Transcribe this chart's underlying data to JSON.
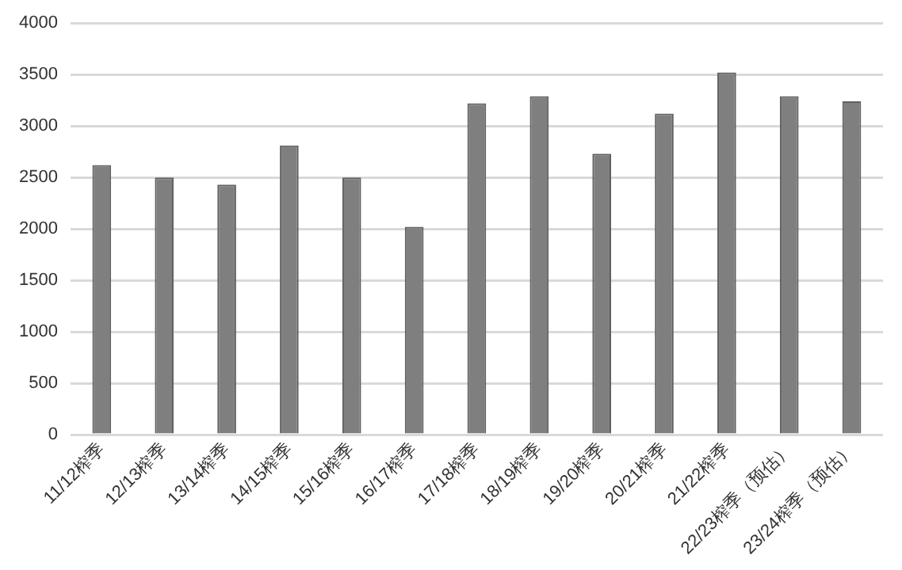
{
  "chart_data": {
    "type": "bar",
    "categories": [
      "11/12榨季",
      "12/13榨季",
      "13/14榨季",
      "14/15榨季",
      "15/16榨季",
      "16/17榨季",
      "17/18榨季",
      "18/19榨季",
      "19/20榨季",
      "20/21榨季",
      "21/22榨季",
      "22/23榨季（预估）",
      "23/24榨季（预估）"
    ],
    "values": [
      2620,
      2500,
      2430,
      2810,
      2500,
      2020,
      3220,
      3290,
      2730,
      3120,
      3520,
      3290,
      3240
    ],
    "color": "#7f7f7f",
    "ylim": [
      0,
      4000
    ],
    "yticks": [
      0,
      500,
      1000,
      1500,
      2000,
      2500,
      3000,
      3500,
      4000
    ],
    "grid": "y"
  }
}
